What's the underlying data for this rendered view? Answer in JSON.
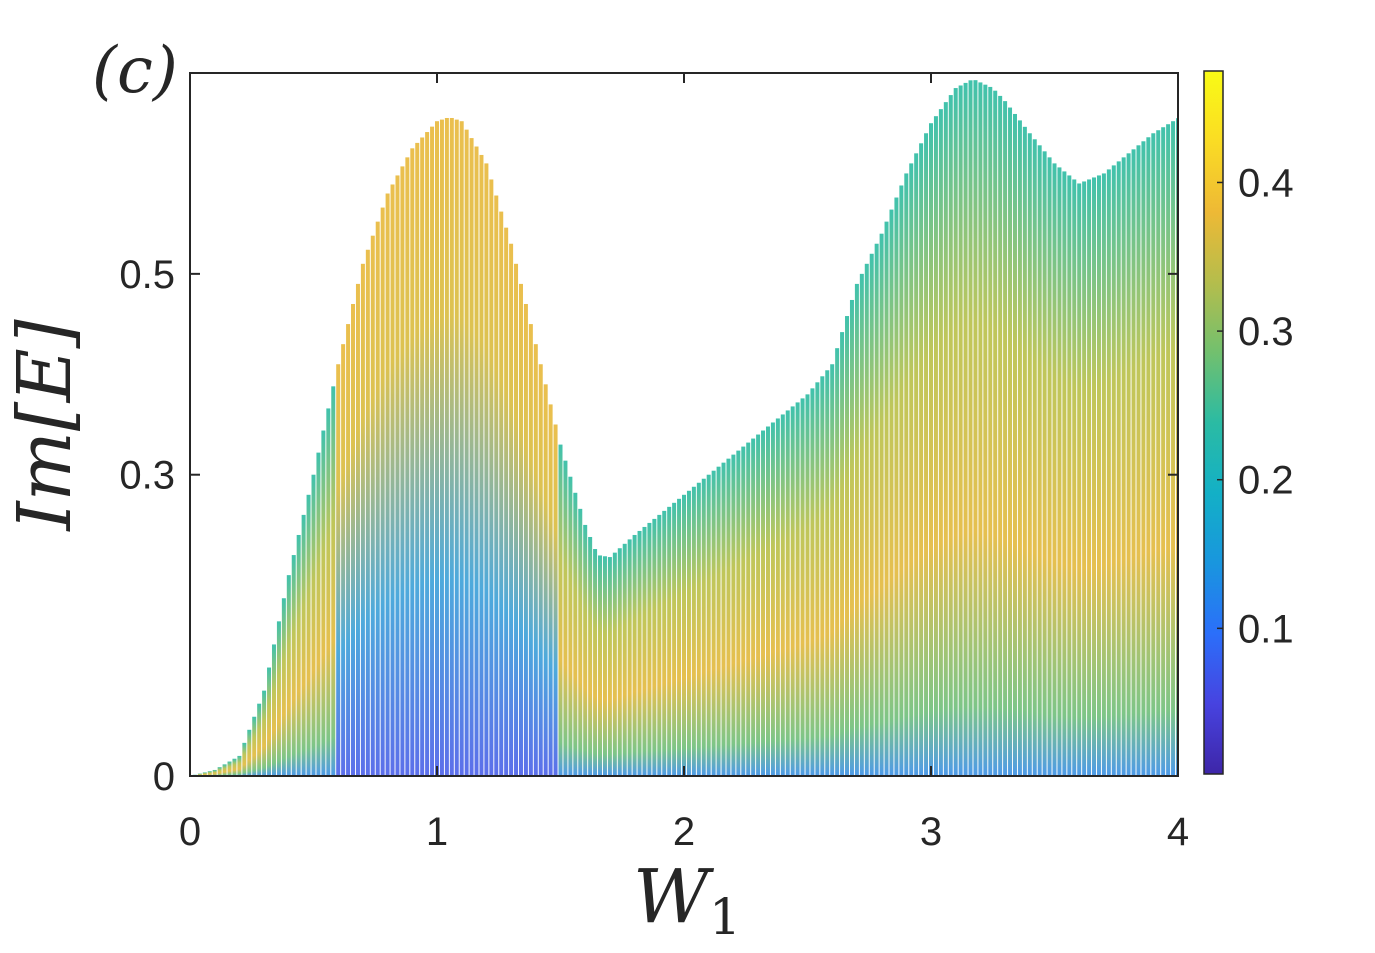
{
  "panel_label": "(c)",
  "chart_data": {
    "type": "scatter",
    "title": "",
    "xlabel": "W",
    "xlabel_subscript": "1",
    "ylabel": "Im[E]",
    "xlim": [
      0,
      4
    ],
    "ylim": [
      0,
      0.7
    ],
    "x_ticks": [
      0,
      1,
      2,
      3,
      4
    ],
    "x_tick_labels": [
      "0",
      "1",
      "2",
      "3",
      "4"
    ],
    "y_ticks": [
      0,
      0.3,
      0.5
    ],
    "y_tick_labels": [
      "0",
      "0.3",
      "0.5"
    ],
    "grid": false,
    "sweep_step": 0.02,
    "envelope": {
      "x": [
        0.0,
        0.1,
        0.2,
        0.3,
        0.4,
        0.5,
        0.6,
        0.7,
        0.8,
        0.9,
        1.0,
        1.05,
        1.1,
        1.2,
        1.3,
        1.4,
        1.5,
        1.6,
        1.65,
        1.7,
        1.8,
        1.9,
        2.0,
        2.1,
        2.2,
        2.3,
        2.4,
        2.5,
        2.6,
        2.7,
        2.8,
        2.9,
        3.0,
        3.1,
        3.17,
        3.25,
        3.3,
        3.4,
        3.5,
        3.6,
        3.7,
        3.8,
        3.9,
        4.0
      ],
      "y": [
        0.0,
        0.006,
        0.02,
        0.085,
        0.2,
        0.3,
        0.41,
        0.51,
        0.58,
        0.625,
        0.652,
        0.656,
        0.652,
        0.61,
        0.53,
        0.43,
        0.33,
        0.25,
        0.22,
        0.218,
        0.24,
        0.26,
        0.28,
        0.3,
        0.32,
        0.34,
        0.36,
        0.38,
        0.41,
        0.49,
        0.54,
        0.6,
        0.65,
        0.685,
        0.694,
        0.685,
        0.672,
        0.64,
        0.61,
        0.59,
        0.6,
        0.62,
        0.64,
        0.655
      ]
    },
    "colorbar": {
      "colormap": "parula",
      "range": [
        0.002,
        0.475
      ],
      "ticks": [
        0.1,
        0.2,
        0.3,
        0.4
      ],
      "tick_labels": [
        "0.1",
        "0.2",
        "0.3",
        "0.4"
      ]
    },
    "colors": {
      "axis": "#262626",
      "parula_stops": [
        "#3e26a8",
        "#4743e0",
        "#2b6ffa",
        "#1996de",
        "#13b0c6",
        "#2bbba3",
        "#72c06e",
        "#b5bd4c",
        "#eeb935",
        "#fadc24",
        "#f9fb15"
      ]
    }
  }
}
